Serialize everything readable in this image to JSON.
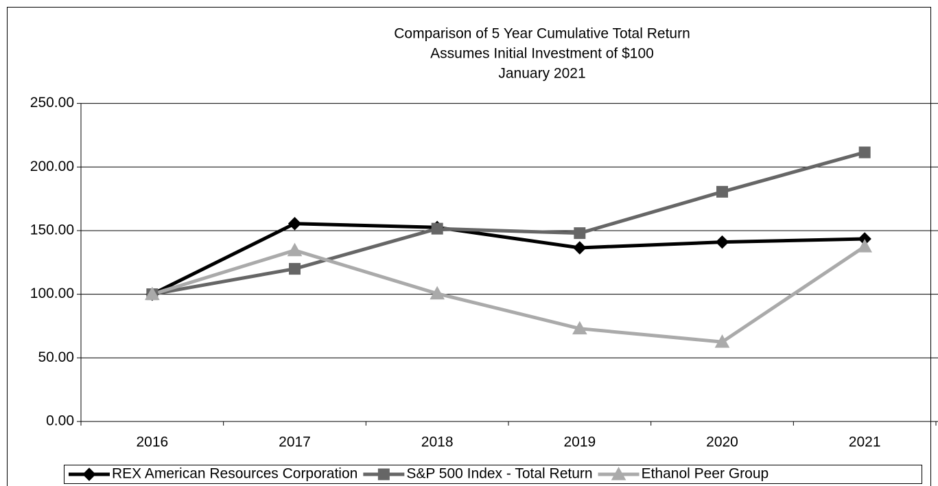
{
  "chart_data": {
    "type": "line",
    "title": [
      "Comparison of 5 Year Cumulative Total Return",
      "Assumes Initial Investment of $100",
      "January 2021"
    ],
    "categories": [
      "2016",
      "2017",
      "2018",
      "2019",
      "2020",
      "2021"
    ],
    "series": [
      {
        "name": "REX American Resources Corporation",
        "color": "#000000",
        "marker": "diamond",
        "values": [
          100,
          155.5,
          152.5,
          136.5,
          141,
          143.5
        ]
      },
      {
        "name": "S&P 500 Index - Total Return",
        "color": "#666666",
        "marker": "square",
        "values": [
          100,
          120,
          151.5,
          148,
          180.5,
          211.5
        ]
      },
      {
        "name": "Ethanol Peer Group",
        "color": "#aaaaaa",
        "marker": "triangle",
        "values": [
          100,
          134.5,
          100.5,
          73,
          62.5,
          137.5
        ]
      }
    ],
    "ylim": [
      0,
      250
    ],
    "yticks": [
      {
        "value": 0,
        "label": "0.00"
      },
      {
        "value": 50,
        "label": "50.00"
      },
      {
        "value": 100,
        "label": "100.00"
      },
      {
        "value": 150,
        "label": "150.00"
      },
      {
        "value": 200,
        "label": "200.00"
      },
      {
        "value": 250,
        "label": "250.00"
      }
    ],
    "grid": true,
    "legend": "bottom"
  }
}
